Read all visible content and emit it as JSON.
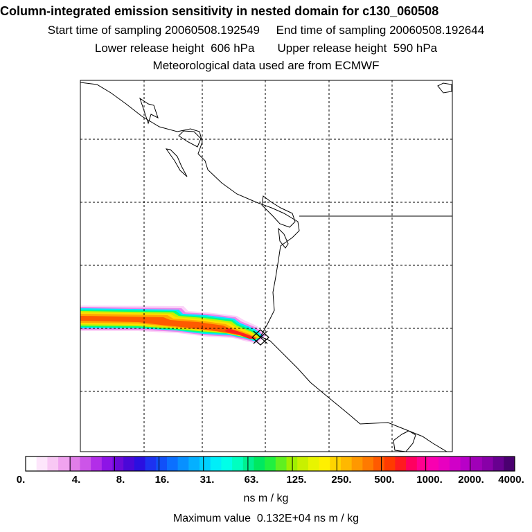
{
  "header": {
    "title": "Column-integrated emission sensitivity in nested domain for c130_060508",
    "sampling_line": "Start time of sampling 20060508.192549     End time of sampling 20060508.192644",
    "release_line": "Lower release height  606 hPa       Upper release height  590 hPa",
    "met_line": "Meteorological data used are from ECMWF"
  },
  "colorbar": {
    "ticks": [
      "0.",
      "4.",
      "8.",
      "16.",
      "31.",
      "63.",
      "125.",
      "250.",
      "500.",
      "1000.",
      "2000.",
      "4000."
    ],
    "unit": "ns m / kg",
    "colors": [
      "#ffffff",
      "#fde6fb",
      "#f8c8f4",
      "#f0a3ef",
      "#e07ee8",
      "#cc55e8",
      "#b22ee8",
      "#8d14e6",
      "#6b0ad8",
      "#4a08d8",
      "#2a10e0",
      "#1d32f0",
      "#1150f8",
      "#0b70ff",
      "#0890ff",
      "#05b0ff",
      "#00d0ff",
      "#00eef8",
      "#00ffe8",
      "#00ffc0",
      "#00f090",
      "#00e860",
      "#20f040",
      "#60f020",
      "#a0f000",
      "#c8f000",
      "#e8f400",
      "#fff000",
      "#ffd400",
      "#ffb800",
      "#ff9800",
      "#ff7a00",
      "#ff5a00",
      "#ff3a00",
      "#ff1a20",
      "#ff0060",
      "#ff0090",
      "#f800b0",
      "#e800c0",
      "#d000c8",
      "#b800c8",
      "#a000b8",
      "#8800a8",
      "#680090",
      "#4a0070"
    ]
  },
  "max_value_line": "Maximum value  0.132E+04 ns m / kg",
  "map": {
    "colors": {
      "coast": "#000000",
      "grid": "#000000",
      "marker": "#000000"
    },
    "plume_colors": [
      "#fbd3f8",
      "#e986ee",
      "#00e8ff",
      "#00ff80",
      "#c8f000",
      "#ffe000",
      "#ffa800",
      "#ff5a00",
      "#ff2020"
    ],
    "marker_icon": "cross-marker-icon"
  }
}
